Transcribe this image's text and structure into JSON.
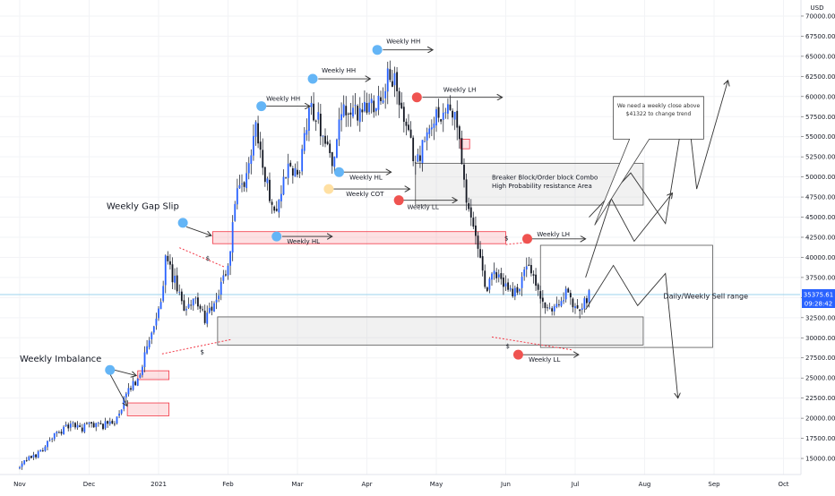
{
  "chart_data": {
    "type": "candlestick",
    "currency": "USD",
    "y_axis": {
      "min": 13000,
      "max": 72000,
      "ticks": [
        15000,
        17500,
        20000,
        22500,
        25000,
        27500,
        30000,
        32500,
        35000,
        37500,
        40000,
        42500,
        45000,
        47500,
        50000,
        52500,
        55000,
        57500,
        60000,
        62500,
        65000,
        67500,
        70000
      ],
      "tick_labels": [
        "15000.00",
        "17500.00",
        "20000.00",
        "22500.00",
        "25000.00",
        "27500.00",
        "30000.00",
        "32500.00",
        "35000.00",
        "37500.00",
        "40000.00",
        "42500.00",
        "45000.00",
        "47500.00",
        "50000.00",
        "52500.00",
        "55000.00",
        "57500.00",
        "60000.00",
        "62500.00",
        "65000.00",
        "67500.00",
        "70000.00"
      ]
    },
    "x_axis": {
      "labels": [
        {
          "text": "Nov",
          "month": 0
        },
        {
          "text": "Dec",
          "month": 1
        },
        {
          "text": "2021",
          "month": 2
        },
        {
          "text": "Feb",
          "month": 3
        },
        {
          "text": "Mar",
          "month": 4
        },
        {
          "text": "Apr",
          "month": 5
        },
        {
          "text": "May",
          "month": 6
        },
        {
          "text": "Jun",
          "month": 7
        },
        {
          "text": "Jul",
          "month": 8
        },
        {
          "text": "Aug",
          "month": 9
        },
        {
          "text": "Sep",
          "month": 10
        },
        {
          "text": "Oct",
          "month": 11
        }
      ]
    },
    "price_anchors": [
      [
        0.0,
        13800
      ],
      [
        0.1,
        14800
      ],
      [
        0.28,
        15700
      ],
      [
        0.45,
        17500
      ],
      [
        0.6,
        18500
      ],
      [
        0.75,
        19200
      ],
      [
        0.9,
        18700
      ],
      [
        1.0,
        19300
      ],
      [
        1.2,
        19100
      ],
      [
        1.4,
        19800
      ],
      [
        1.55,
        23200
      ],
      [
        1.7,
        25000
      ],
      [
        1.85,
        29000
      ],
      [
        2.0,
        33000
      ],
      [
        2.1,
        39500
      ],
      [
        2.25,
        36500
      ],
      [
        2.35,
        33500
      ],
      [
        2.5,
        35000
      ],
      [
        2.65,
        32500
      ],
      [
        2.8,
        33500
      ],
      [
        2.9,
        37000
      ],
      [
        3.0,
        38500
      ],
      [
        3.1,
        47000
      ],
      [
        3.25,
        49000
      ],
      [
        3.4,
        57000
      ],
      [
        3.55,
        49000
      ],
      [
        3.7,
        46000
      ],
      [
        3.85,
        51000
      ],
      [
        4.0,
        50000
      ],
      [
        4.2,
        59000
      ],
      [
        4.35,
        56000
      ],
      [
        4.5,
        52000
      ],
      [
        4.65,
        58000
      ],
      [
        4.8,
        57500
      ],
      [
        5.0,
        59000
      ],
      [
        5.2,
        60000
      ],
      [
        5.35,
        63000
      ],
      [
        5.45,
        60000
      ],
      [
        5.55,
        56000
      ],
      [
        5.7,
        52000
      ],
      [
        5.85,
        54500
      ],
      [
        6.0,
        58000
      ],
      [
        6.15,
        58200
      ],
      [
        6.3,
        57000
      ],
      [
        6.4,
        49000
      ],
      [
        6.55,
        43000
      ],
      [
        6.7,
        36000
      ],
      [
        6.85,
        38000
      ],
      [
        7.0,
        36500
      ],
      [
        7.15,
        35500
      ],
      [
        7.3,
        39000
      ],
      [
        7.45,
        36000
      ],
      [
        7.6,
        33000
      ],
      [
        7.75,
        34500
      ],
      [
        7.9,
        35500
      ],
      [
        8.0,
        33500
      ],
      [
        8.1,
        34500
      ],
      [
        8.2,
        35400
      ]
    ],
    "current_price": 35375.61,
    "last_price_label": "35375.61",
    "countdown_label": "09:28:42",
    "zones": [
      {
        "name": "weekly-hl-zone",
        "kind": "red",
        "x0": 2.78,
        "x1": 7.0,
        "y0": 41700,
        "y1": 43200
      },
      {
        "name": "breaker-block-zone",
        "kind": "gray",
        "x0": 5.7,
        "x1": 8.98,
        "y0": 46500,
        "y1": 51700
      },
      {
        "name": "sell-range-box",
        "kind": "white",
        "x0": 7.5,
        "x1": 9.98,
        "y0": 28800,
        "y1": 41500
      },
      {
        "name": "support-zone",
        "kind": "gray",
        "x0": 2.85,
        "x1": 8.98,
        "y0": 29100,
        "y1": 32600
      },
      {
        "name": "imbalance-upper",
        "kind": "red",
        "x0": 1.7,
        "x1": 2.15,
        "y0": 24800,
        "y1": 25900
      },
      {
        "name": "imbalance-lower",
        "kind": "red",
        "x0": 1.55,
        "x1": 2.15,
        "y0": 20300,
        "y1": 21900
      },
      {
        "name": "small-red-box",
        "kind": "red",
        "x0": 6.35,
        "x1": 6.48,
        "y0": 53500,
        "y1": 54700
      }
    ],
    "markers": [
      {
        "name": "weekly-gap-slip-dot",
        "color": "blue",
        "x": 2.35,
        "y": 44300
      },
      {
        "name": "weekly-hh-dot-feb",
        "color": "blue",
        "x": 3.48,
        "y": 58800
      },
      {
        "name": "weekly-hh-dot-mar",
        "color": "blue",
        "x": 4.22,
        "y": 62200
      },
      {
        "name": "weekly-hh-dot-apr",
        "color": "blue",
        "x": 5.15,
        "y": 65800
      },
      {
        "name": "weekly-hl-dot",
        "color": "blue",
        "x": 4.6,
        "y": 50600
      },
      {
        "name": "weekly-hl-dot-feb",
        "color": "blue",
        "x": 3.7,
        "y": 42600
      },
      {
        "name": "weekly-cot-dot",
        "color": "yellow",
        "x": 4.45,
        "y": 48500
      },
      {
        "name": "weekly-lh-dot-may",
        "color": "red",
        "x": 5.72,
        "y": 59900
      },
      {
        "name": "weekly-ll-dot",
        "color": "red",
        "x": 5.46,
        "y": 47100
      },
      {
        "name": "weekly-lh-dot-jun",
        "color": "red",
        "x": 7.31,
        "y": 42300
      },
      {
        "name": "weekly-ll-dot-jun",
        "color": "red",
        "x": 7.18,
        "y": 27900
      },
      {
        "name": "weekly-imbalance-dot",
        "color": "blue",
        "x": 1.3,
        "y": 26000
      }
    ],
    "annotations": [
      {
        "name": "weekly-imbalance-label",
        "text": "Weekly Imbalance",
        "x": 0.0,
        "y": 27000,
        "size": "large"
      },
      {
        "name": "weekly-gap-slip-label",
        "text": "Weekly Gap Slip",
        "x": 1.25,
        "y": 46000,
        "size": "large"
      },
      {
        "name": "weekly-hh-label-feb",
        "text": "Weekly HH",
        "x": 3.55,
        "y": 59500,
        "size": "small"
      },
      {
        "name": "weekly-hh-label-mar",
        "text": "Weekly HH",
        "x": 4.35,
        "y": 63000,
        "size": "small"
      },
      {
        "name": "weekly-hh-label-apr",
        "text": "Weekly HH",
        "x": 5.28,
        "y": 66600,
        "size": "small"
      },
      {
        "name": "weekly-lh-label-may",
        "text": "Weekly LH",
        "x": 6.1,
        "y": 60600,
        "size": "small"
      },
      {
        "name": "weekly-hl-label-mar",
        "text": "Weekly HL",
        "x": 4.75,
        "y": 49700,
        "size": "small"
      },
      {
        "name": "weekly-cot-label",
        "text": "Weekly COT",
        "x": 4.7,
        "y": 47600,
        "size": "small"
      },
      {
        "name": "weekly-ll-label-apr",
        "text": "Weekly LL",
        "x": 5.58,
        "y": 46000,
        "size": "small"
      },
      {
        "name": "weekly-hl-label-feb",
        "text": "Weekly HL",
        "x": 3.85,
        "y": 41700,
        "size": "small"
      },
      {
        "name": "weekly-lh-label-jun",
        "text": "Weekly LH",
        "x": 7.45,
        "y": 42600,
        "size": "small"
      },
      {
        "name": "weekly-ll-label-jun",
        "text": "Weekly LL",
        "x": 7.33,
        "y": 27000,
        "size": "small"
      },
      {
        "name": "sell-range-label",
        "text": "Daily/Weekly Sell range",
        "x": 9.27,
        "y": 34900,
        "size": "medium"
      },
      {
        "name": "breaker-label-1",
        "text": "Breaker Block/Order block Combo",
        "x": 6.8,
        "y": 49700,
        "size": "small"
      },
      {
        "name": "breaker-label-2",
        "text": "High Probability resistance Area",
        "x": 6.8,
        "y": 48600,
        "size": "small"
      },
      {
        "name": "dollar-1",
        "text": "$",
        "x": 2.68,
        "y": 39600,
        "size": "small"
      },
      {
        "name": "dollar-2",
        "text": "$",
        "x": 2.6,
        "y": 28000,
        "size": "small"
      },
      {
        "name": "dollar-3",
        "text": "$",
        "x": 6.98,
        "y": 42100,
        "size": "small"
      },
      {
        "name": "dollar-4",
        "text": "$",
        "x": 7.0,
        "y": 28700,
        "size": "small"
      }
    ],
    "note": {
      "lines": [
        "We need a weekly close above",
        "$41322 to change trend"
      ],
      "x0": 8.55,
      "x1": 9.85,
      "y0": 54700,
      "y1": 60000
    },
    "projections": [
      {
        "name": "projection-top",
        "points": [
          [
            8.2,
            45000
          ],
          [
            8.8,
            50500
          ],
          [
            9.3,
            44200
          ],
          [
            9.6,
            60000
          ],
          [
            9.75,
            48500
          ],
          [
            10.2,
            62000
          ]
        ]
      },
      {
        "name": "projection-mid",
        "points": [
          [
            8.15,
            37500
          ],
          [
            8.52,
            47300
          ],
          [
            8.85,
            42000
          ],
          [
            9.4,
            48000
          ]
        ]
      },
      {
        "name": "projection-low",
        "points": [
          [
            8.15,
            33500
          ],
          [
            8.55,
            39000
          ],
          [
            8.9,
            34000
          ],
          [
            9.3,
            38000
          ],
          [
            9.48,
            22500
          ]
        ]
      }
    ]
  }
}
